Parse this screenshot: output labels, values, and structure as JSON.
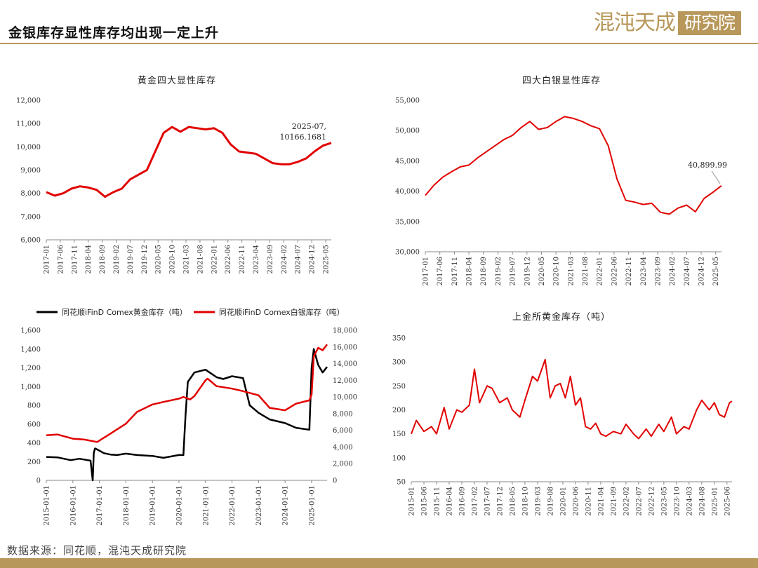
{
  "header": {
    "title": "金银库存显性库存均出现一定上升"
  },
  "logo": {
    "text": "混沌天成研究院",
    "brush_text": "混沌天成",
    "stamp_text": "研究院"
  },
  "source": {
    "text": "数据来源：同花顺，混沌天成研究院"
  },
  "colors": {
    "gold_brand": "#b8975a",
    "red_series": "#e10000",
    "black_series": "#000000"
  },
  "chart_data": [
    {
      "id": "gold4",
      "type": "line",
      "title": "黄金四大显性库存",
      "ylim": [
        6000,
        12000
      ],
      "yticks": [
        "6,000",
        "7,000",
        "8,000",
        "9,000",
        "10,000",
        "11,000",
        "12,000"
      ],
      "xticks": [
        "2017-01",
        "2017-06",
        "2017-11",
        "2018-04",
        "2018-09",
        "2019-02",
        "2019-07",
        "2019-12",
        "2020-05",
        "2020-10",
        "2021-03",
        "2021-08",
        "2022-01",
        "2022-06",
        "2022-11",
        "2023-04",
        "2023-09",
        "2024-02",
        "2024-07",
        "2024-12",
        "2025-05"
      ],
      "x_start": "2017-01",
      "x_end": "2025-07",
      "grid": false,
      "annotation": {
        "lines": [
          "2025-07,",
          "10166.1681"
        ],
        "x": "2025-07",
        "y": 10166.1681
      },
      "series": [
        {
          "color": "#e10000",
          "x": [
            "2017-01",
            "2017-04",
            "2017-07",
            "2017-10",
            "2018-01",
            "2018-04",
            "2018-07",
            "2018-10",
            "2019-01",
            "2019-04",
            "2019-07",
            "2019-10",
            "2020-01",
            "2020-04",
            "2020-07",
            "2020-10",
            "2021-01",
            "2021-04",
            "2021-07",
            "2021-10",
            "2022-01",
            "2022-04",
            "2022-07",
            "2022-10",
            "2023-01",
            "2023-04",
            "2023-07",
            "2023-10",
            "2024-01",
            "2024-04",
            "2024-07",
            "2024-10",
            "2025-01",
            "2025-04",
            "2025-07"
          ],
          "values": [
            8050,
            7900,
            8000,
            8200,
            8300,
            8250,
            8150,
            7850,
            8050,
            8200,
            8600,
            8800,
            9000,
            9800,
            10600,
            10850,
            10650,
            10850,
            10800,
            10750,
            10800,
            10600,
            10100,
            9800,
            9750,
            9700,
            9500,
            9300,
            9250,
            9250,
            9350,
            9500,
            9800,
            10050,
            10166
          ]
        }
      ]
    },
    {
      "id": "silver4",
      "type": "line",
      "title": "四大白银显性库存",
      "ylim": [
        30000,
        55000
      ],
      "yticks": [
        "30,000",
        "35,000",
        "40,000",
        "45,000",
        "50,000",
        "55,000"
      ],
      "xticks": [
        "2017-01",
        "2017-06",
        "2017-11",
        "2018-04",
        "2018-09",
        "2019-02",
        "2019-07",
        "2019-12",
        "2020-05",
        "2020-10",
        "2021-03",
        "2021-08",
        "2022-01",
        "2022-06",
        "2022-11",
        "2023-04",
        "2023-09",
        "2024-02",
        "2024-07",
        "2024-12",
        "2025-05"
      ],
      "x_start": "2017-01",
      "x_end": "2025-07",
      "grid": false,
      "annotation": {
        "lines": [
          "40,899.99"
        ],
        "x": "2025-07",
        "y": 40899.99
      },
      "series": [
        {
          "color": "#e10000",
          "x": [
            "2017-01",
            "2017-04",
            "2017-07",
            "2017-10",
            "2018-01",
            "2018-04",
            "2018-07",
            "2018-10",
            "2019-01",
            "2019-04",
            "2019-07",
            "2019-10",
            "2020-01",
            "2020-04",
            "2020-07",
            "2020-10",
            "2021-01",
            "2021-04",
            "2021-07",
            "2021-10",
            "2022-01",
            "2022-04",
            "2022-07",
            "2022-10",
            "2023-01",
            "2023-04",
            "2023-07",
            "2023-10",
            "2024-01",
            "2024-04",
            "2024-07",
            "2024-10",
            "2025-01",
            "2025-04",
            "2025-07"
          ],
          "values": [
            39300,
            41000,
            42300,
            43200,
            44000,
            44300,
            45500,
            46500,
            47500,
            48500,
            49200,
            50500,
            51500,
            50200,
            50500,
            51500,
            52300,
            52000,
            51500,
            50800,
            50300,
            47500,
            42000,
            38500,
            38200,
            37800,
            38000,
            36500,
            36200,
            37200,
            37700,
            36600,
            38800,
            39800,
            40900
          ]
        }
      ]
    },
    {
      "id": "comex",
      "type": "line",
      "title": "",
      "ylim_left": [
        0,
        1600
      ],
      "ylim_right": [
        0,
        18000
      ],
      "yticks_left": [
        "0",
        "200",
        "400",
        "600",
        "800",
        "1,000",
        "1,200",
        "1,400",
        "1,600"
      ],
      "yticks_right": [
        "0",
        "2,000",
        "4,000",
        "6,000",
        "8,000",
        "10,000",
        "12,000",
        "14,000",
        "16,000",
        "18,000"
      ],
      "xticks": [
        "2015-01-01",
        "2016-01-01",
        "2017-01-01",
        "2018-01-01",
        "2019-01-01",
        "2020-01-01",
        "2021-01-01",
        "2022-01-01",
        "2023-01-01",
        "2024-01-01",
        "2025-01-01"
      ],
      "x_start": "2015-01-01",
      "x_end": "2025-08-01",
      "grid": false,
      "legend_position": "top",
      "series": [
        {
          "name": "同花顺iFinD Comex黄金库存（吨）",
          "color": "#000000",
          "axis": "left",
          "x": [
            "2015-01-01",
            "2015-06-01",
            "2015-12-01",
            "2016-04-01",
            "2016-09-01",
            "2016-10-01",
            "2016-10-15",
            "2016-11-01",
            "2016-12-01",
            "2017-03-01",
            "2017-06-01",
            "2017-09-01",
            "2018-01-01",
            "2018-06-01",
            "2019-01-01",
            "2019-06-01",
            "2020-01-01",
            "2020-03-01",
            "2020-04-01",
            "2020-05-01",
            "2020-08-01",
            "2021-01-01",
            "2021-06-01",
            "2021-09-01",
            "2022-01-01",
            "2022-06-01",
            "2022-09-01",
            "2023-01-01",
            "2023-06-01",
            "2024-01-01",
            "2024-06-01",
            "2024-12-01",
            "2025-01-01",
            "2025-02-01",
            "2025-04-01",
            "2025-06-01",
            "2025-08-01"
          ],
          "values": [
            250,
            245,
            215,
            230,
            210,
            0,
            290,
            340,
            330,
            290,
            275,
            270,
            285,
            270,
            260,
            240,
            270,
            270,
            700,
            1050,
            1150,
            1180,
            1100,
            1080,
            1110,
            1090,
            800,
            720,
            650,
            610,
            560,
            540,
            1200,
            1400,
            1230,
            1150,
            1210
          ]
        },
        {
          "name": "同花顺iFinD Comex白银库存（吨）",
          "color": "#e10000",
          "axis": "right",
          "x": [
            "2015-01-01",
            "2015-06-01",
            "2016-01-01",
            "2016-06-01",
            "2016-12-01",
            "2017-06-01",
            "2018-01-01",
            "2018-06-01",
            "2019-01-01",
            "2019-06-01",
            "2020-01-01",
            "2020-03-01",
            "2020-06-01",
            "2020-08-01",
            "2021-01-01",
            "2021-02-01",
            "2021-06-01",
            "2022-01-01",
            "2022-06-01",
            "2023-01-01",
            "2023-06-01",
            "2024-01-01",
            "2024-06-01",
            "2024-12-01",
            "2025-01-01",
            "2025-02-01",
            "2025-04-01",
            "2025-06-01",
            "2025-08-01"
          ],
          "values": [
            5400,
            5500,
            5000,
            4900,
            4600,
            5600,
            6800,
            8200,
            9100,
            9400,
            9800,
            10000,
            9700,
            10100,
            12000,
            12200,
            11300,
            11000,
            10700,
            10200,
            8700,
            8400,
            9200,
            9600,
            10300,
            14900,
            15900,
            15600,
            16300
          ]
        }
      ]
    },
    {
      "id": "sge",
      "type": "line",
      "title": "上金所黄金库存（吨）",
      "ylim": [
        50,
        350
      ],
      "yticks": [
        "50",
        "100",
        "150",
        "200",
        "250",
        "300",
        "350"
      ],
      "xticks": [
        "2015-01",
        "2015-06",
        "2015-11",
        "2016-04",
        "2016-09",
        "2017-02",
        "2017-07",
        "2017-12",
        "2018-05",
        "2018-10",
        "2019-03",
        "2019-08",
        "2020-01",
        "2020-06",
        "2020-11",
        "2021-04",
        "2021-09",
        "2022-02",
        "2022-07",
        "2022-12",
        "2023-05",
        "2023-10",
        "2024-03",
        "2024-08",
        "2025-01",
        "2025-06"
      ],
      "x_start": "2015-01",
      "x_end": "2025-08",
      "grid": false,
      "series": [
        {
          "color": "#e10000",
          "x": [
            "2015-01",
            "2015-03",
            "2015-06",
            "2015-09",
            "2015-11",
            "2016-02",
            "2016-04",
            "2016-07",
            "2016-09",
            "2016-12",
            "2017-02",
            "2017-04",
            "2017-07",
            "2017-09",
            "2017-12",
            "2018-03",
            "2018-05",
            "2018-08",
            "2018-10",
            "2019-01",
            "2019-03",
            "2019-06",
            "2019-08",
            "2019-10",
            "2019-12",
            "2020-02",
            "2020-04",
            "2020-06",
            "2020-08",
            "2020-10",
            "2020-12",
            "2021-02",
            "2021-04",
            "2021-06",
            "2021-09",
            "2021-12",
            "2022-02",
            "2022-05",
            "2022-07",
            "2022-10",
            "2022-12",
            "2023-03",
            "2023-05",
            "2023-08",
            "2023-10",
            "2024-01",
            "2024-03",
            "2024-06",
            "2024-08",
            "2024-11",
            "2025-01",
            "2025-03",
            "2025-05",
            "2025-07",
            "2025-08"
          ],
          "values": [
            150,
            178,
            155,
            165,
            150,
            205,
            160,
            200,
            195,
            210,
            285,
            215,
            250,
            245,
            215,
            225,
            200,
            185,
            220,
            270,
            260,
            305,
            225,
            250,
            255,
            225,
            270,
            210,
            225,
            165,
            160,
            172,
            150,
            145,
            155,
            150,
            170,
            150,
            140,
            160,
            145,
            170,
            155,
            185,
            150,
            165,
            160,
            200,
            220,
            200,
            215,
            190,
            185,
            215,
            218
          ]
        }
      ]
    }
  ]
}
